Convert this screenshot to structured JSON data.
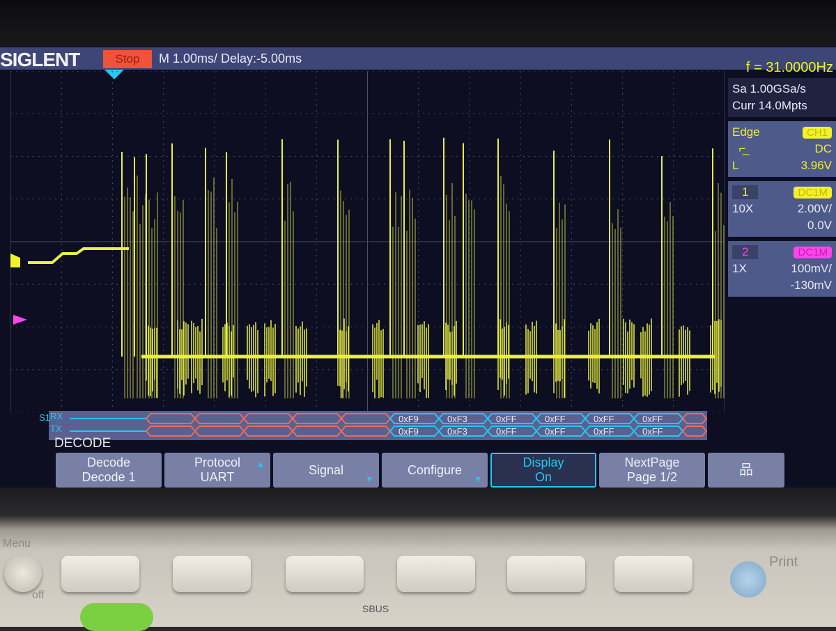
{
  "header": {
    "brand": "SIGLENT",
    "run_state": "Stop",
    "timebase": "M 1.00ms/ Delay:-5.00ms",
    "frequency": "f = 31.0000Hz"
  },
  "acquisition": {
    "sample_rate": "Sa 1.00GSa/s",
    "memory": "Curr 14.0Mpts"
  },
  "trigger": {
    "type": "Edge",
    "source": "CH1",
    "slope_icon": "rising-edge-icon",
    "coupling": "DC",
    "level_label": "L",
    "level": "3.96V"
  },
  "channels": [
    {
      "number": "1",
      "coupling": "DC1M",
      "probe": "10X",
      "scale": "2.00V/",
      "offset": "0.0V",
      "color": "#f2f22a"
    },
    {
      "number": "2",
      "coupling": "DC1M",
      "probe": "1X",
      "scale": "100mV/",
      "offset": "-130mV",
      "color": "#ff44ee"
    }
  ],
  "decode_bus": {
    "label": "S1",
    "rx_label": "RX",
    "tx_label": "TX",
    "rx_values": [
      "0xF9",
      "0xF3",
      "0xFF",
      "0xFF",
      "0xFF",
      "0xFF"
    ],
    "tx_values": [
      "0xF9",
      "0xF3",
      "0xFF",
      "0xFF",
      "0xFF",
      "0xFF"
    ],
    "error_color": "#f06a5a",
    "valid_color": "#25c8f0"
  },
  "menu": {
    "title": "DECODE",
    "softkeys": [
      {
        "line1": "Decode",
        "line2": "Decode 1"
      },
      {
        "line1": "Protocol",
        "line2": "UART"
      },
      {
        "line1": "Signal",
        "line2": ""
      },
      {
        "line1": "Configure",
        "line2": ""
      },
      {
        "line1": "Display",
        "line2": "On"
      },
      {
        "line1": "NextPage",
        "line2": "Page 1/2"
      }
    ],
    "network_icon": "network-icon"
  },
  "hardware": {
    "menu_label": "Menu",
    "off_label": "off",
    "print_label": "Print",
    "sbus_label": "SBUS"
  }
}
